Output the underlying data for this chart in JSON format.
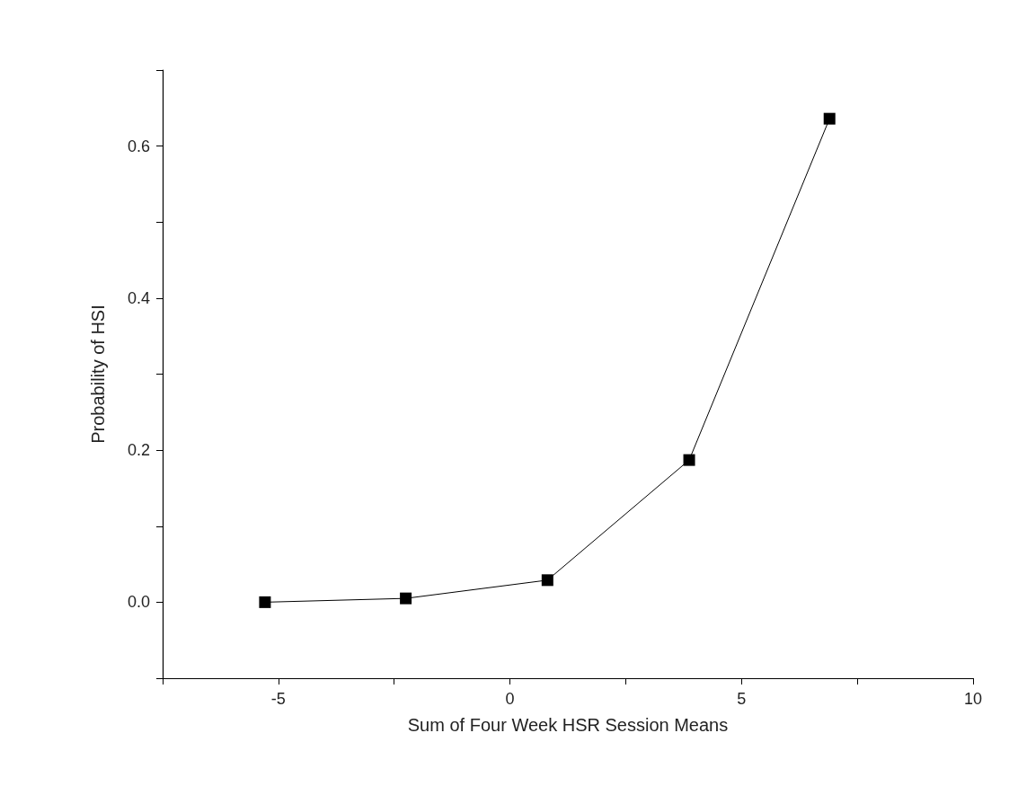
{
  "chart_data": {
    "type": "line",
    "xlabel": "Sum of Four Week HSR Session Means",
    "ylabel": "Probability of HSI",
    "x": [
      -5.29,
      -2.25,
      0.81,
      3.87,
      6.9
    ],
    "series": [
      {
        "color": "#000000",
        "values": [
          0,
          0.005,
          0.029,
          0.187,
          0.636
        ]
      }
    ],
    "xlim": [
      -7.5,
      10
    ],
    "xticks": [
      {
        "value": -7.5,
        "label": null
      },
      -5,
      {
        "value": -2.5,
        "label": null
      },
      0,
      {
        "value": 2.5,
        "label": null
      },
      5,
      {
        "value": 7.5,
        "label": null
      },
      10
    ],
    "ylim": [
      -0.1,
      0.7
    ],
    "yticks": [
      {
        "value": -0.1,
        "label": null
      },
      {
        "value": 0,
        "label": "0.0"
      },
      {
        "value": 0.1,
        "label": null
      },
      0.2,
      {
        "value": 0.3,
        "label": null
      },
      0.4,
      {
        "value": 0.5,
        "label": null
      },
      0.6,
      {
        "value": 0.7,
        "label": null
      }
    ],
    "grid": false,
    "marker": "square",
    "line_style": "solid"
  }
}
